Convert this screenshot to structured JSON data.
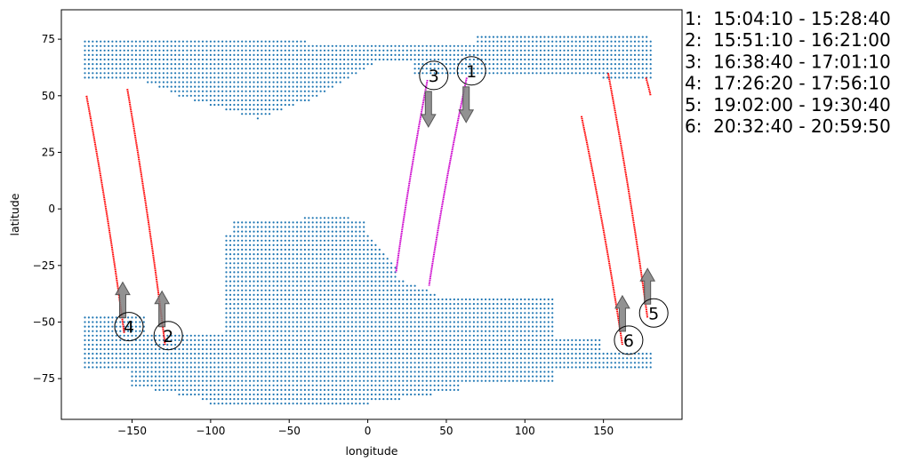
{
  "chart_data": {
    "type": "scatter",
    "title": "",
    "xlabel": "longitude",
    "ylabel": "latitude",
    "xlim": [
      -195,
      200
    ],
    "ylim": [
      -93,
      88
    ],
    "xticks": [
      -150,
      -100,
      -50,
      0,
      50,
      100,
      150
    ],
    "yticks": [
      -75,
      -50,
      -25,
      0,
      25,
      50,
      75
    ],
    "grid": false,
    "colors": {
      "grid_points": "#1f77b4",
      "ascending_track": "#cc00cc",
      "descending_track": "#ff0000",
      "arrow": "#7f7f7f"
    },
    "grid_regions": [
      {
        "name": "north-band",
        "lon": [
          -180,
          180
        ],
        "lat": [
          38,
          78
        ]
      },
      {
        "name": "south-band",
        "lon": [
          -180,
          180
        ],
        "lat": [
          -88,
          -40
        ]
      }
    ],
    "tracks": [
      {
        "id": "1",
        "color": "#cc00cc",
        "points": [
          [
            63,
            58
          ],
          [
            39,
            -34
          ]
        ],
        "arrow": "down"
      },
      {
        "id": "2",
        "color": "#ff0000",
        "points": [
          [
            -153,
            53
          ],
          [
            -129,
            -60
          ]
        ],
        "arrow": "up"
      },
      {
        "id": "3",
        "color": "#cc00cc",
        "points": [
          [
            38,
            57
          ],
          [
            18,
            -28
          ]
        ],
        "arrow": "down"
      },
      {
        "id": "4",
        "color": "#ff0000",
        "points": [
          [
            -179,
            50
          ],
          [
            -155,
            -55
          ]
        ],
        "arrow": "up"
      },
      {
        "id": "5",
        "color": "#ff0000",
        "points": [
          [
            177,
            58
          ],
          [
            180,
            50
          ],
          [
            153,
            60
          ],
          [
            178,
            -48
          ]
        ],
        "arrow": "up"
      },
      {
        "id": "6",
        "color": "#ff0000",
        "points": [
          [
            136,
            41
          ],
          [
            162,
            -60
          ]
        ],
        "arrow": "up"
      }
    ],
    "markers": [
      {
        "label": "1",
        "x": 66,
        "y": 61,
        "arrow": "down"
      },
      {
        "label": "2",
        "x": -127,
        "y": -56,
        "arrow": "up"
      },
      {
        "label": "3",
        "x": 42,
        "y": 59,
        "arrow": "down"
      },
      {
        "label": "4",
        "x": -152,
        "y": -52,
        "arrow": "up"
      },
      {
        "label": "5",
        "x": 182,
        "y": -46,
        "arrow": "up"
      },
      {
        "label": "6",
        "x": 166,
        "y": -58,
        "arrow": "up"
      }
    ],
    "legend_position": "right",
    "legend": [
      "1:  15:04:10 - 15:28:40",
      "2:  15:51:10 - 16:21:00",
      "3:  16:38:40 - 17:01:10",
      "4:  17:26:20 - 17:56:10",
      "5:  19:02:00 - 19:30:40",
      "6:  20:32:40 - 20:59:50"
    ]
  }
}
